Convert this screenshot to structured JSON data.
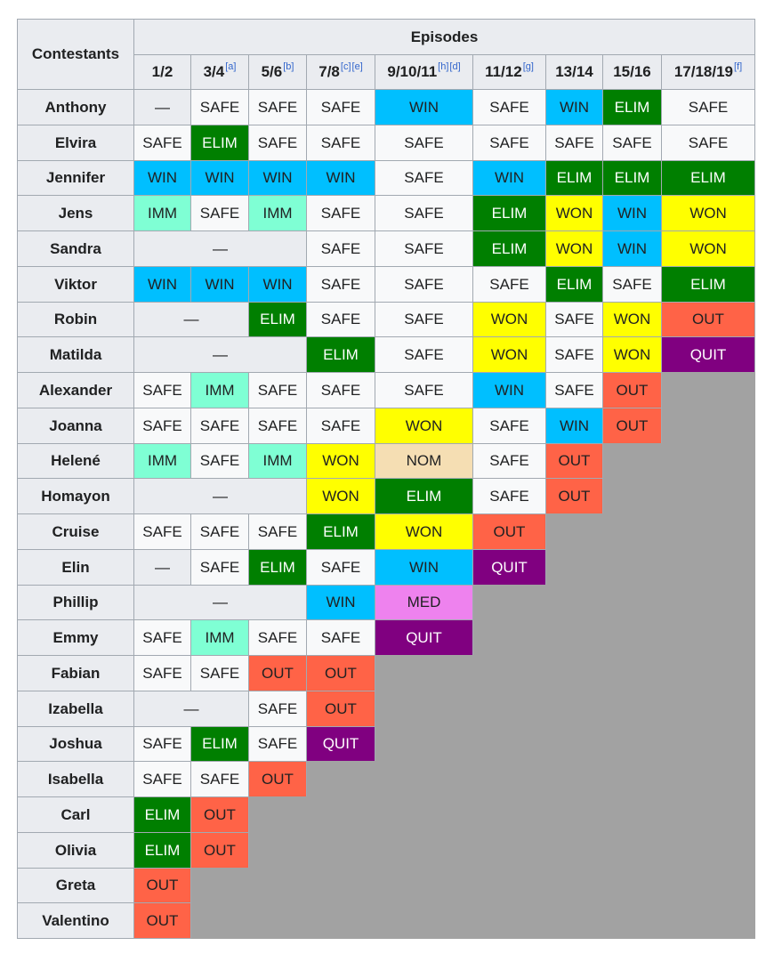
{
  "header": {
    "contestants_label": "Contestants",
    "episodes_label": "Episodes",
    "episodes": [
      {
        "label": "1/2",
        "notes": []
      },
      {
        "label": "3/4",
        "notes": [
          "[a]"
        ]
      },
      {
        "label": "5/6",
        "notes": [
          "[b]"
        ]
      },
      {
        "label": "7/8",
        "notes": [
          "[c]",
          "[e]"
        ]
      },
      {
        "label": "9/10/11",
        "notes": [
          "[h]",
          "[d]"
        ]
      },
      {
        "label": "11/12",
        "notes": [
          "[g]"
        ]
      },
      {
        "label": "13/14",
        "notes": []
      },
      {
        "label": "15/16",
        "notes": []
      },
      {
        "label": "17/18/19",
        "notes": [
          "[f]"
        ]
      }
    ]
  },
  "status_colors": {
    "SAFE": "#f8f9fa",
    "WIN": "#00bfff",
    "ELIM": "#007f00",
    "IMM": "#7fffd4",
    "WON": "#ffff00",
    "OUT": "#ff6347",
    "QUIT": "#800080",
    "NOM": "#f5deb3",
    "MED": "#ee82ee",
    "dash": "#eaecf0",
    "eliminated_filler": "#a2a2a2"
  },
  "rows": [
    {
      "name": "Anthony",
      "cells": [
        {
          "text": "—",
          "span": 1,
          "status": "dash"
        },
        {
          "text": "SAFE",
          "span": 1,
          "status": "SAFE"
        },
        {
          "text": "SAFE",
          "span": 1,
          "status": "SAFE"
        },
        {
          "text": "SAFE",
          "span": 1,
          "status": "SAFE"
        },
        {
          "text": "WIN",
          "span": 1,
          "status": "WIN"
        },
        {
          "text": "SAFE",
          "span": 1,
          "status": "SAFE"
        },
        {
          "text": "WIN",
          "span": 1,
          "status": "WIN"
        },
        {
          "text": "ELIM",
          "span": 1,
          "status": "ELIM"
        },
        {
          "text": "SAFE",
          "span": 1,
          "status": "SAFE"
        }
      ]
    },
    {
      "name": "Elvira",
      "cells": [
        {
          "text": "SAFE",
          "span": 1,
          "status": "SAFE"
        },
        {
          "text": "ELIM",
          "span": 1,
          "status": "ELIM"
        },
        {
          "text": "SAFE",
          "span": 1,
          "status": "SAFE"
        },
        {
          "text": "SAFE",
          "span": 1,
          "status": "SAFE"
        },
        {
          "text": "SAFE",
          "span": 1,
          "status": "SAFE"
        },
        {
          "text": "SAFE",
          "span": 1,
          "status": "SAFE"
        },
        {
          "text": "SAFE",
          "span": 1,
          "status": "SAFE"
        },
        {
          "text": "SAFE",
          "span": 1,
          "status": "SAFE"
        },
        {
          "text": "SAFE",
          "span": 1,
          "status": "SAFE"
        }
      ]
    },
    {
      "name": "Jennifer",
      "cells": [
        {
          "text": "WIN",
          "span": 1,
          "status": "WIN"
        },
        {
          "text": "WIN",
          "span": 1,
          "status": "WIN"
        },
        {
          "text": "WIN",
          "span": 1,
          "status": "WIN"
        },
        {
          "text": "WIN",
          "span": 1,
          "status": "WIN"
        },
        {
          "text": "SAFE",
          "span": 1,
          "status": "SAFE"
        },
        {
          "text": "WIN",
          "span": 1,
          "status": "WIN"
        },
        {
          "text": "ELIM",
          "span": 1,
          "status": "ELIM"
        },
        {
          "text": "ELIM",
          "span": 1,
          "status": "ELIM"
        },
        {
          "text": "ELIM",
          "span": 1,
          "status": "ELIM"
        }
      ]
    },
    {
      "name": "Jens",
      "cells": [
        {
          "text": "IMM",
          "span": 1,
          "status": "IMM"
        },
        {
          "text": "SAFE",
          "span": 1,
          "status": "SAFE"
        },
        {
          "text": "IMM",
          "span": 1,
          "status": "IMM"
        },
        {
          "text": "SAFE",
          "span": 1,
          "status": "SAFE"
        },
        {
          "text": "SAFE",
          "span": 1,
          "status": "SAFE"
        },
        {
          "text": "ELIM",
          "span": 1,
          "status": "ELIM"
        },
        {
          "text": "WON",
          "span": 1,
          "status": "WON"
        },
        {
          "text": "WIN",
          "span": 1,
          "status": "WIN"
        },
        {
          "text": "WON",
          "span": 1,
          "status": "WON"
        }
      ]
    },
    {
      "name": "Sandra",
      "cells": [
        {
          "text": "—",
          "span": 3,
          "status": "dash"
        },
        {
          "text": "SAFE",
          "span": 1,
          "status": "SAFE"
        },
        {
          "text": "SAFE",
          "span": 1,
          "status": "SAFE"
        },
        {
          "text": "ELIM",
          "span": 1,
          "status": "ELIM"
        },
        {
          "text": "WON",
          "span": 1,
          "status": "WON"
        },
        {
          "text": "WIN",
          "span": 1,
          "status": "WIN"
        },
        {
          "text": "WON",
          "span": 1,
          "status": "WON"
        }
      ]
    },
    {
      "name": "Viktor",
      "cells": [
        {
          "text": "WIN",
          "span": 1,
          "status": "WIN"
        },
        {
          "text": "WIN",
          "span": 1,
          "status": "WIN"
        },
        {
          "text": "WIN",
          "span": 1,
          "status": "WIN"
        },
        {
          "text": "SAFE",
          "span": 1,
          "status": "SAFE"
        },
        {
          "text": "SAFE",
          "span": 1,
          "status": "SAFE"
        },
        {
          "text": "SAFE",
          "span": 1,
          "status": "SAFE"
        },
        {
          "text": "ELIM",
          "span": 1,
          "status": "ELIM"
        },
        {
          "text": "SAFE",
          "span": 1,
          "status": "SAFE"
        },
        {
          "text": "ELIM",
          "span": 1,
          "status": "ELIM"
        }
      ]
    },
    {
      "name": "Robin",
      "cells": [
        {
          "text": "—",
          "span": 2,
          "status": "dash"
        },
        {
          "text": "ELIM",
          "span": 1,
          "status": "ELIM"
        },
        {
          "text": "SAFE",
          "span": 1,
          "status": "SAFE"
        },
        {
          "text": "SAFE",
          "span": 1,
          "status": "SAFE"
        },
        {
          "text": "WON",
          "span": 1,
          "status": "WON"
        },
        {
          "text": "SAFE",
          "span": 1,
          "status": "SAFE"
        },
        {
          "text": "WON",
          "span": 1,
          "status": "WON"
        },
        {
          "text": "OUT",
          "span": 1,
          "status": "OUT"
        }
      ]
    },
    {
      "name": "Matilda",
      "cells": [
        {
          "text": "—",
          "span": 3,
          "status": "dash"
        },
        {
          "text": "ELIM",
          "span": 1,
          "status": "ELIM"
        },
        {
          "text": "SAFE",
          "span": 1,
          "status": "SAFE"
        },
        {
          "text": "WON",
          "span": 1,
          "status": "WON"
        },
        {
          "text": "SAFE",
          "span": 1,
          "status": "SAFE"
        },
        {
          "text": "WON",
          "span": 1,
          "status": "WON"
        },
        {
          "text": "QUIT",
          "span": 1,
          "status": "QUIT"
        }
      ]
    },
    {
      "name": "Alexander",
      "cells": [
        {
          "text": "SAFE",
          "span": 1,
          "status": "SAFE"
        },
        {
          "text": "IMM",
          "span": 1,
          "status": "IMM"
        },
        {
          "text": "SAFE",
          "span": 1,
          "status": "SAFE"
        },
        {
          "text": "SAFE",
          "span": 1,
          "status": "SAFE"
        },
        {
          "text": "SAFE",
          "span": 1,
          "status": "SAFE"
        },
        {
          "text": "WIN",
          "span": 1,
          "status": "WIN"
        },
        {
          "text": "SAFE",
          "span": 1,
          "status": "SAFE"
        },
        {
          "text": "OUT",
          "span": 1,
          "status": "OUT"
        }
      ]
    },
    {
      "name": "Joanna",
      "cells": [
        {
          "text": "SAFE",
          "span": 1,
          "status": "SAFE"
        },
        {
          "text": "SAFE",
          "span": 1,
          "status": "SAFE"
        },
        {
          "text": "SAFE",
          "span": 1,
          "status": "SAFE"
        },
        {
          "text": "SAFE",
          "span": 1,
          "status": "SAFE"
        },
        {
          "text": "WON",
          "span": 1,
          "status": "WON"
        },
        {
          "text": "SAFE",
          "span": 1,
          "status": "SAFE"
        },
        {
          "text": "WIN",
          "span": 1,
          "status": "WIN"
        },
        {
          "text": "OUT",
          "span": 1,
          "status": "OUT"
        }
      ]
    },
    {
      "name": "Helené",
      "cells": [
        {
          "text": "IMM",
          "span": 1,
          "status": "IMM"
        },
        {
          "text": "SAFE",
          "span": 1,
          "status": "SAFE"
        },
        {
          "text": "IMM",
          "span": 1,
          "status": "IMM"
        },
        {
          "text": "WON",
          "span": 1,
          "status": "WON"
        },
        {
          "text": "NOM",
          "span": 1,
          "status": "NOM"
        },
        {
          "text": "SAFE",
          "span": 1,
          "status": "SAFE"
        },
        {
          "text": "OUT",
          "span": 1,
          "status": "OUT"
        }
      ]
    },
    {
      "name": "Homayon",
      "cells": [
        {
          "text": "—",
          "span": 3,
          "status": "dash"
        },
        {
          "text": "WON",
          "span": 1,
          "status": "WON"
        },
        {
          "text": "ELIM",
          "span": 1,
          "status": "ELIM"
        },
        {
          "text": "SAFE",
          "span": 1,
          "status": "SAFE"
        },
        {
          "text": "OUT",
          "span": 1,
          "status": "OUT"
        }
      ]
    },
    {
      "name": "Cruise",
      "cells": [
        {
          "text": "SAFE",
          "span": 1,
          "status": "SAFE"
        },
        {
          "text": "SAFE",
          "span": 1,
          "status": "SAFE"
        },
        {
          "text": "SAFE",
          "span": 1,
          "status": "SAFE"
        },
        {
          "text": "ELIM",
          "span": 1,
          "status": "ELIM"
        },
        {
          "text": "WON",
          "span": 1,
          "status": "WON"
        },
        {
          "text": "OUT",
          "span": 1,
          "status": "OUT"
        }
      ]
    },
    {
      "name": "Elin",
      "cells": [
        {
          "text": "—",
          "span": 1,
          "status": "dash"
        },
        {
          "text": "SAFE",
          "span": 1,
          "status": "SAFE"
        },
        {
          "text": "ELIM",
          "span": 1,
          "status": "ELIM"
        },
        {
          "text": "SAFE",
          "span": 1,
          "status": "SAFE"
        },
        {
          "text": "WIN",
          "span": 1,
          "status": "WIN"
        },
        {
          "text": "QUIT",
          "span": 1,
          "status": "QUIT"
        }
      ]
    },
    {
      "name": "Phillip",
      "cells": [
        {
          "text": "—",
          "span": 3,
          "status": "dash"
        },
        {
          "text": "WIN",
          "span": 1,
          "status": "WIN"
        },
        {
          "text": "MED",
          "span": 1,
          "status": "MED"
        }
      ]
    },
    {
      "name": "Emmy",
      "cells": [
        {
          "text": "SAFE",
          "span": 1,
          "status": "SAFE"
        },
        {
          "text": "IMM",
          "span": 1,
          "status": "IMM"
        },
        {
          "text": "SAFE",
          "span": 1,
          "status": "SAFE"
        },
        {
          "text": "SAFE",
          "span": 1,
          "status": "SAFE"
        },
        {
          "text": "QUIT",
          "span": 1,
          "status": "QUIT"
        }
      ]
    },
    {
      "name": "Fabian",
      "cells": [
        {
          "text": "SAFE",
          "span": 1,
          "status": "SAFE"
        },
        {
          "text": "SAFE",
          "span": 1,
          "status": "SAFE"
        },
        {
          "text": "OUT",
          "span": 1,
          "status": "OUT"
        },
        {
          "text": "OUT",
          "span": 1,
          "status": "OUT"
        }
      ]
    },
    {
      "name": "Izabella",
      "cells": [
        {
          "text": "—",
          "span": 2,
          "status": "dash"
        },
        {
          "text": "SAFE",
          "span": 1,
          "status": "SAFE"
        },
        {
          "text": "OUT",
          "span": 1,
          "status": "OUT"
        }
      ]
    },
    {
      "name": "Joshua",
      "cells": [
        {
          "text": "SAFE",
          "span": 1,
          "status": "SAFE"
        },
        {
          "text": "ELIM",
          "span": 1,
          "status": "ELIM"
        },
        {
          "text": "SAFE",
          "span": 1,
          "status": "SAFE"
        },
        {
          "text": "QUIT",
          "span": 1,
          "status": "QUIT"
        }
      ]
    },
    {
      "name": "Isabella",
      "cells": [
        {
          "text": "SAFE",
          "span": 1,
          "status": "SAFE"
        },
        {
          "text": "SAFE",
          "span": 1,
          "status": "SAFE"
        },
        {
          "text": "OUT",
          "span": 1,
          "status": "OUT"
        }
      ]
    },
    {
      "name": "Carl",
      "cells": [
        {
          "text": "ELIM",
          "span": 1,
          "status": "ELIM"
        },
        {
          "text": "OUT",
          "span": 1,
          "status": "OUT"
        }
      ]
    },
    {
      "name": "Olivia",
      "cells": [
        {
          "text": "ELIM",
          "span": 1,
          "status": "ELIM"
        },
        {
          "text": "OUT",
          "span": 1,
          "status": "OUT"
        }
      ]
    },
    {
      "name": "Greta",
      "cells": [
        {
          "text": "OUT",
          "span": 1,
          "status": "OUT"
        }
      ]
    },
    {
      "name": "Valentino",
      "cells": [
        {
          "text": "OUT",
          "span": 1,
          "status": "OUT"
        }
      ]
    }
  ]
}
